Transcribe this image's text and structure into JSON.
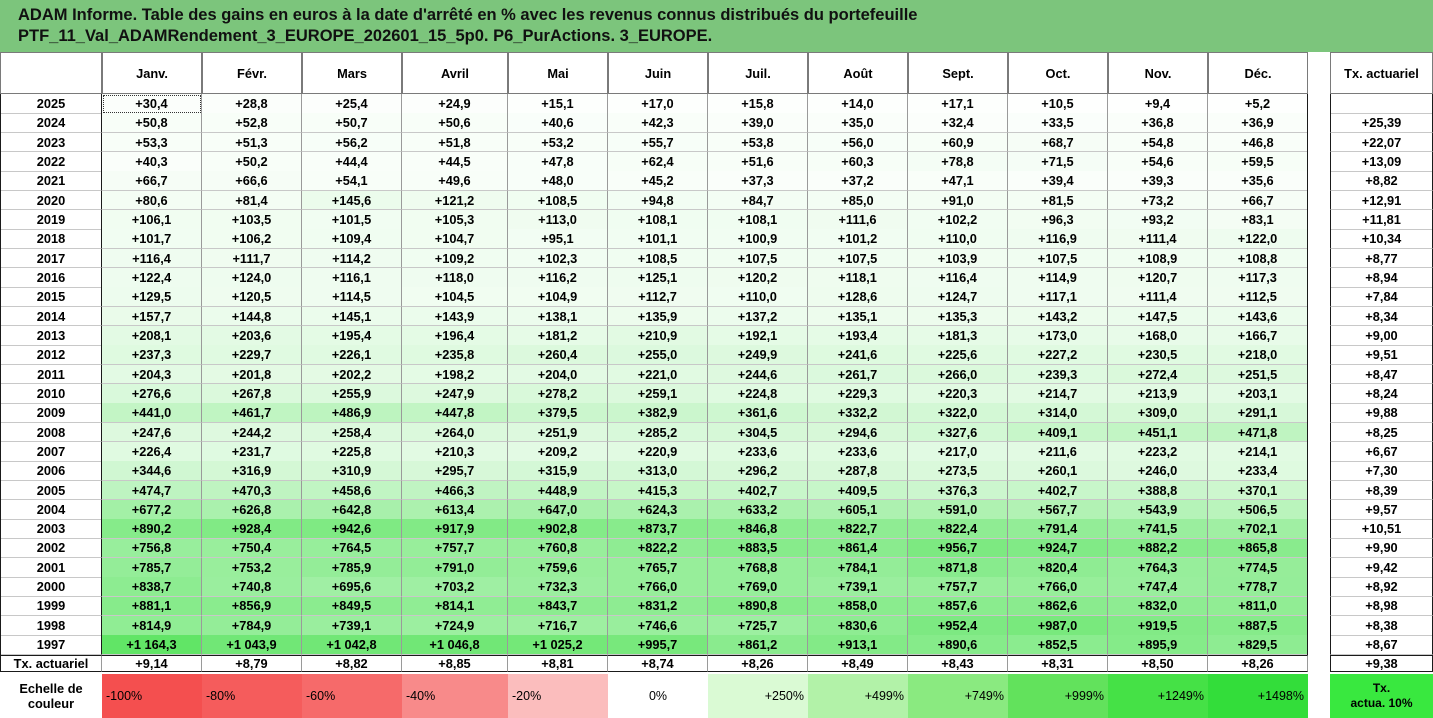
{
  "title": {
    "line1": "ADAM Informe. Table des gains en euros à la date d'arrêté en % avec les revenus connus distribués du portefeuille",
    "line2": "PTF_11_Val_ADAMRendement_3_EUROPE_202601_15_5p0. P6_PurActions. 3_EUROPE."
  },
  "colors": {
    "title_bg": "#7cc57c",
    "negative_strong": "#f44f4f",
    "positive_strong": "#39e83f"
  },
  "chart_data": {
    "type": "table",
    "month_headers": [
      "Janv.",
      "Févr.",
      "Mars",
      "Avril",
      "Mai",
      "Juin",
      "Juil.",
      "Août",
      "Sept.",
      "Oct.",
      "Nov.",
      "Déc."
    ],
    "tx_header": "Tx. actuariel",
    "rows": [
      {
        "year": "2025",
        "values": [
          "+30,4",
          "+28,8",
          "+25,4",
          "+24,9",
          "+15,1",
          "+17,0",
          "+15,8",
          "+14,0",
          "+17,1",
          "+10,5",
          "+9,4",
          "+5,2"
        ],
        "nums": [
          30.4,
          28.8,
          25.4,
          24.9,
          15.1,
          17.0,
          15.8,
          14.0,
          17.1,
          10.5,
          9.4,
          5.2
        ],
        "tx": ""
      },
      {
        "year": "2024",
        "values": [
          "+50,8",
          "+52,8",
          "+50,7",
          "+50,6",
          "+40,6",
          "+42,3",
          "+39,0",
          "+35,0",
          "+32,4",
          "+33,5",
          "+36,8",
          "+36,9"
        ],
        "nums": [
          50.8,
          52.8,
          50.7,
          50.6,
          40.6,
          42.3,
          39.0,
          35.0,
          32.4,
          33.5,
          36.8,
          36.9
        ],
        "tx": "+25,39"
      },
      {
        "year": "2023",
        "values": [
          "+53,3",
          "+51,3",
          "+56,2",
          "+51,8",
          "+53,2",
          "+55,7",
          "+53,8",
          "+56,0",
          "+60,9",
          "+68,7",
          "+54,8",
          "+46,8"
        ],
        "nums": [
          53.3,
          51.3,
          56.2,
          51.8,
          53.2,
          55.7,
          53.8,
          56.0,
          60.9,
          68.7,
          54.8,
          46.8
        ],
        "tx": "+22,07"
      },
      {
        "year": "2022",
        "values": [
          "+40,3",
          "+50,2",
          "+44,4",
          "+44,5",
          "+47,8",
          "+62,4",
          "+51,6",
          "+60,3",
          "+78,8",
          "+71,5",
          "+54,6",
          "+59,5"
        ],
        "nums": [
          40.3,
          50.2,
          44.4,
          44.5,
          47.8,
          62.4,
          51.6,
          60.3,
          78.8,
          71.5,
          54.6,
          59.5
        ],
        "tx": "+13,09"
      },
      {
        "year": "2021",
        "values": [
          "+66,7",
          "+66,6",
          "+54,1",
          "+49,6",
          "+48,0",
          "+45,2",
          "+37,3",
          "+37,2",
          "+47,1",
          "+39,4",
          "+39,3",
          "+35,6"
        ],
        "nums": [
          66.7,
          66.6,
          54.1,
          49.6,
          48.0,
          45.2,
          37.3,
          37.2,
          47.1,
          39.4,
          39.3,
          35.6
        ],
        "tx": "+8,82"
      },
      {
        "year": "2020",
        "values": [
          "+80,6",
          "+81,4",
          "+145,6",
          "+121,2",
          "+108,5",
          "+94,8",
          "+84,7",
          "+85,0",
          "+91,0",
          "+81,5",
          "+73,2",
          "+66,7"
        ],
        "nums": [
          80.6,
          81.4,
          145.6,
          121.2,
          108.5,
          94.8,
          84.7,
          85.0,
          91.0,
          81.5,
          73.2,
          66.7
        ],
        "tx": "+12,91"
      },
      {
        "year": "2019",
        "values": [
          "+106,1",
          "+103,5",
          "+101,5",
          "+105,3",
          "+113,0",
          "+108,1",
          "+108,1",
          "+111,6",
          "+102,2",
          "+96,3",
          "+93,2",
          "+83,1"
        ],
        "nums": [
          106.1,
          103.5,
          101.5,
          105.3,
          113.0,
          108.1,
          108.1,
          111.6,
          102.2,
          96.3,
          93.2,
          83.1
        ],
        "tx": "+11,81"
      },
      {
        "year": "2018",
        "values": [
          "+101,7",
          "+106,2",
          "+109,4",
          "+104,7",
          "+95,1",
          "+101,1",
          "+100,9",
          "+101,2",
          "+110,0",
          "+116,9",
          "+111,4",
          "+122,0"
        ],
        "nums": [
          101.7,
          106.2,
          109.4,
          104.7,
          95.1,
          101.1,
          100.9,
          101.2,
          110.0,
          116.9,
          111.4,
          122.0
        ],
        "tx": "+10,34"
      },
      {
        "year": "2017",
        "values": [
          "+116,4",
          "+111,7",
          "+114,2",
          "+109,2",
          "+102,3",
          "+108,5",
          "+107,5",
          "+107,5",
          "+103,9",
          "+107,5",
          "+108,9",
          "+108,8"
        ],
        "nums": [
          116.4,
          111.7,
          114.2,
          109.2,
          102.3,
          108.5,
          107.5,
          107.5,
          103.9,
          107.5,
          108.9,
          108.8
        ],
        "tx": "+8,77"
      },
      {
        "year": "2016",
        "values": [
          "+122,4",
          "+124,0",
          "+116,1",
          "+118,0",
          "+116,2",
          "+125,1",
          "+120,2",
          "+118,1",
          "+116,4",
          "+114,9",
          "+120,7",
          "+117,3"
        ],
        "nums": [
          122.4,
          124.0,
          116.1,
          118.0,
          116.2,
          125.1,
          120.2,
          118.1,
          116.4,
          114.9,
          120.7,
          117.3
        ],
        "tx": "+8,94"
      },
      {
        "year": "2015",
        "values": [
          "+129,5",
          "+120,5",
          "+114,5",
          "+104,5",
          "+104,9",
          "+112,7",
          "+110,0",
          "+128,6",
          "+124,7",
          "+117,1",
          "+111,4",
          "+112,5"
        ],
        "nums": [
          129.5,
          120.5,
          114.5,
          104.5,
          104.9,
          112.7,
          110.0,
          128.6,
          124.7,
          117.1,
          111.4,
          112.5
        ],
        "tx": "+7,84"
      },
      {
        "year": "2014",
        "values": [
          "+157,7",
          "+144,8",
          "+145,1",
          "+143,9",
          "+138,1",
          "+135,9",
          "+137,2",
          "+135,1",
          "+135,3",
          "+143,2",
          "+147,5",
          "+143,6"
        ],
        "nums": [
          157.7,
          144.8,
          145.1,
          143.9,
          138.1,
          135.9,
          137.2,
          135.1,
          135.3,
          143.2,
          147.5,
          143.6
        ],
        "tx": "+8,34"
      },
      {
        "year": "2013",
        "values": [
          "+208,1",
          "+203,6",
          "+195,4",
          "+196,4",
          "+181,2",
          "+210,9",
          "+192,1",
          "+193,4",
          "+181,3",
          "+173,0",
          "+168,0",
          "+166,7"
        ],
        "nums": [
          208.1,
          203.6,
          195.4,
          196.4,
          181.2,
          210.9,
          192.1,
          193.4,
          181.3,
          173.0,
          168.0,
          166.7
        ],
        "tx": "+9,00"
      },
      {
        "year": "2012",
        "values": [
          "+237,3",
          "+229,7",
          "+226,1",
          "+235,8",
          "+260,4",
          "+255,0",
          "+249,9",
          "+241,6",
          "+225,6",
          "+227,2",
          "+230,5",
          "+218,0"
        ],
        "nums": [
          237.3,
          229.7,
          226.1,
          235.8,
          260.4,
          255.0,
          249.9,
          241.6,
          225.6,
          227.2,
          230.5,
          218.0
        ],
        "tx": "+9,51"
      },
      {
        "year": "2011",
        "values": [
          "+204,3",
          "+201,8",
          "+202,2",
          "+198,2",
          "+204,0",
          "+221,0",
          "+244,6",
          "+261,7",
          "+266,0",
          "+239,3",
          "+272,4",
          "+251,5"
        ],
        "nums": [
          204.3,
          201.8,
          202.2,
          198.2,
          204.0,
          221.0,
          244.6,
          261.7,
          266.0,
          239.3,
          272.4,
          251.5
        ],
        "tx": "+8,47"
      },
      {
        "year": "2010",
        "values": [
          "+276,6",
          "+267,8",
          "+255,9",
          "+247,9",
          "+278,2",
          "+259,1",
          "+224,8",
          "+229,3",
          "+220,3",
          "+214,7",
          "+213,9",
          "+203,1"
        ],
        "nums": [
          276.6,
          267.8,
          255.9,
          247.9,
          278.2,
          259.1,
          224.8,
          229.3,
          220.3,
          214.7,
          213.9,
          203.1
        ],
        "tx": "+8,24"
      },
      {
        "year": "2009",
        "values": [
          "+441,0",
          "+461,7",
          "+486,9",
          "+447,8",
          "+379,5",
          "+382,9",
          "+361,6",
          "+332,2",
          "+322,0",
          "+314,0",
          "+309,0",
          "+291,1"
        ],
        "nums": [
          441.0,
          461.7,
          486.9,
          447.8,
          379.5,
          382.9,
          361.6,
          332.2,
          322.0,
          314.0,
          309.0,
          291.1
        ],
        "tx": "+9,88"
      },
      {
        "year": "2008",
        "values": [
          "+247,6",
          "+244,2",
          "+258,4",
          "+264,0",
          "+251,9",
          "+285,2",
          "+304,5",
          "+294,6",
          "+327,6",
          "+409,1",
          "+451,1",
          "+471,8"
        ],
        "nums": [
          247.6,
          244.2,
          258.4,
          264.0,
          251.9,
          285.2,
          304.5,
          294.6,
          327.6,
          409.1,
          451.1,
          471.8
        ],
        "tx": "+8,25"
      },
      {
        "year": "2007",
        "values": [
          "+226,4",
          "+231,7",
          "+225,8",
          "+210,3",
          "+209,2",
          "+220,9",
          "+233,6",
          "+233,6",
          "+217,0",
          "+211,6",
          "+223,2",
          "+214,1"
        ],
        "nums": [
          226.4,
          231.7,
          225.8,
          210.3,
          209.2,
          220.9,
          233.6,
          233.6,
          217.0,
          211.6,
          223.2,
          214.1
        ],
        "tx": "+6,67"
      },
      {
        "year": "2006",
        "values": [
          "+344,6",
          "+316,9",
          "+310,9",
          "+295,7",
          "+315,9",
          "+313,0",
          "+296,2",
          "+287,8",
          "+273,5",
          "+260,1",
          "+246,0",
          "+233,4"
        ],
        "nums": [
          344.6,
          316.9,
          310.9,
          295.7,
          315.9,
          313.0,
          296.2,
          287.8,
          273.5,
          260.1,
          246.0,
          233.4
        ],
        "tx": "+7,30"
      },
      {
        "year": "2005",
        "values": [
          "+474,7",
          "+470,3",
          "+458,6",
          "+466,3",
          "+448,9",
          "+415,3",
          "+402,7",
          "+409,5",
          "+376,3",
          "+402,7",
          "+388,8",
          "+370,1"
        ],
        "nums": [
          474.7,
          470.3,
          458.6,
          466.3,
          448.9,
          415.3,
          402.7,
          409.5,
          376.3,
          402.7,
          388.8,
          370.1
        ],
        "tx": "+8,39"
      },
      {
        "year": "2004",
        "values": [
          "+677,2",
          "+626,8",
          "+642,8",
          "+613,4",
          "+647,0",
          "+624,3",
          "+633,2",
          "+605,1",
          "+591,0",
          "+567,7",
          "+543,9",
          "+506,5"
        ],
        "nums": [
          677.2,
          626.8,
          642.8,
          613.4,
          647.0,
          624.3,
          633.2,
          605.1,
          591.0,
          567.7,
          543.9,
          506.5
        ],
        "tx": "+9,57"
      },
      {
        "year": "2003",
        "values": [
          "+890,2",
          "+928,4",
          "+942,6",
          "+917,9",
          "+902,8",
          "+873,7",
          "+846,8",
          "+822,7",
          "+822,4",
          "+791,4",
          "+741,5",
          "+702,1"
        ],
        "nums": [
          890.2,
          928.4,
          942.6,
          917.9,
          902.8,
          873.7,
          846.8,
          822.7,
          822.4,
          791.4,
          741.5,
          702.1
        ],
        "tx": "+10,51"
      },
      {
        "year": "2002",
        "values": [
          "+756,8",
          "+750,4",
          "+764,5",
          "+757,7",
          "+760,8",
          "+822,2",
          "+883,5",
          "+861,4",
          "+956,7",
          "+924,7",
          "+882,2",
          "+865,8"
        ],
        "nums": [
          756.8,
          750.4,
          764.5,
          757.7,
          760.8,
          822.2,
          883.5,
          861.4,
          956.7,
          924.7,
          882.2,
          865.8
        ],
        "tx": "+9,90"
      },
      {
        "year": "2001",
        "values": [
          "+785,7",
          "+753,2",
          "+785,9",
          "+791,0",
          "+759,6",
          "+765,7",
          "+768,8",
          "+784,1",
          "+871,8",
          "+820,4",
          "+764,3",
          "+774,5"
        ],
        "nums": [
          785.7,
          753.2,
          785.9,
          791.0,
          759.6,
          765.7,
          768.8,
          784.1,
          871.8,
          820.4,
          764.3,
          774.5
        ],
        "tx": "+9,42"
      },
      {
        "year": "2000",
        "values": [
          "+838,7",
          "+740,8",
          "+695,6",
          "+703,2",
          "+732,3",
          "+766,0",
          "+769,0",
          "+739,1",
          "+757,7",
          "+766,0",
          "+747,4",
          "+778,7"
        ],
        "nums": [
          838.7,
          740.8,
          695.6,
          703.2,
          732.3,
          766.0,
          769.0,
          739.1,
          757.7,
          766.0,
          747.4,
          778.7
        ],
        "tx": "+8,92"
      },
      {
        "year": "1999",
        "values": [
          "+881,1",
          "+856,9",
          "+849,5",
          "+814,1",
          "+843,7",
          "+831,2",
          "+890,8",
          "+858,0",
          "+857,6",
          "+862,6",
          "+832,0",
          "+811,0"
        ],
        "nums": [
          881.1,
          856.9,
          849.5,
          814.1,
          843.7,
          831.2,
          890.8,
          858.0,
          857.6,
          862.6,
          832.0,
          811.0
        ],
        "tx": "+8,98"
      },
      {
        "year": "1998",
        "values": [
          "+814,9",
          "+784,9",
          "+739,1",
          "+724,9",
          "+716,7",
          "+746,6",
          "+725,7",
          "+830,6",
          "+952,4",
          "+987,0",
          "+919,5",
          "+887,5"
        ],
        "nums": [
          814.9,
          784.9,
          739.1,
          724.9,
          716.7,
          746.6,
          725.7,
          830.6,
          952.4,
          987.0,
          919.5,
          887.5
        ],
        "tx": "+8,38"
      },
      {
        "year": "1997",
        "values": [
          "+1 164,3",
          "+1 043,9",
          "+1 042,8",
          "+1 046,8",
          "+1 025,2",
          "+995,7",
          "+861,2",
          "+913,1",
          "+890,6",
          "+852,5",
          "+895,9",
          "+829,5"
        ],
        "nums": [
          1164.3,
          1043.9,
          1042.8,
          1046.8,
          1025.2,
          995.7,
          861.2,
          913.1,
          890.6,
          852.5,
          895.9,
          829.5
        ],
        "tx": "+8,67"
      }
    ],
    "footer": {
      "label": "Tx. actuariel",
      "values": [
        "+9,14",
        "+8,79",
        "+8,82",
        "+8,85",
        "+8,81",
        "+8,74",
        "+8,26",
        "+8,49",
        "+8,43",
        "+8,31",
        "+8,50",
        "+8,26"
      ],
      "tx": "+9,38"
    },
    "color_scale": {
      "label_line1": "Echelle de",
      "label_line2": "couleur",
      "steps": [
        {
          "label": "-100%",
          "color": "#f44f4f",
          "align": "left"
        },
        {
          "label": "-80%",
          "color": "#f55c5c",
          "align": "left"
        },
        {
          "label": "-60%",
          "color": "#f66a6a",
          "align": "left"
        },
        {
          "label": "-40%",
          "color": "#f88a8a",
          "align": "left"
        },
        {
          "label": "-20%",
          "color": "#fbbdbd",
          "align": "left"
        },
        {
          "label": "0%",
          "color": "#ffffff",
          "align": "center"
        },
        {
          "label": "+250%",
          "color": "#dafad4",
          "align": "right"
        },
        {
          "label": "+499%",
          "color": "#b2f2a8",
          "align": "right"
        },
        {
          "label": "+749%",
          "color": "#8aea80",
          "align": "right"
        },
        {
          "label": "+999%",
          "color": "#62e25c",
          "align": "right"
        },
        {
          "label": "+1249%",
          "color": "#45e146",
          "align": "right"
        },
        {
          "label": "+1498%",
          "color": "#33dd3a",
          "align": "right"
        }
      ],
      "tx_label_line1": "Tx.",
      "tx_label_line2": "actua. 10%",
      "tx_color": "#39e83f"
    }
  }
}
